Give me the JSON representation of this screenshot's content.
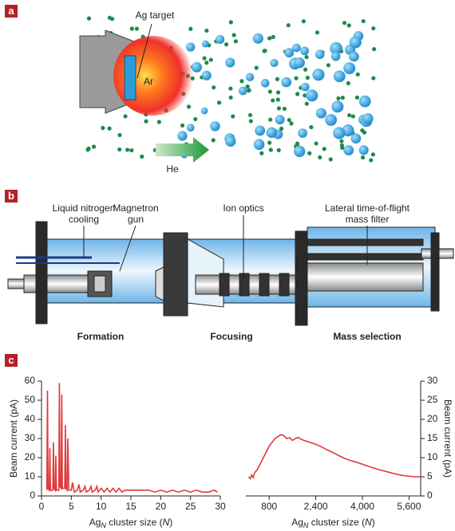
{
  "panels": {
    "a": {
      "label": "a",
      "target_label": "Ag target",
      "gas_label": "Ar",
      "carrier_label": "He"
    },
    "b": {
      "label": "b",
      "callouts": [
        [
          "Liquid nitrogen",
          "cooling"
        ],
        [
          "Magnetron",
          "gun"
        ],
        [
          "Ion optics"
        ],
        [
          "Lateral time-of-flight",
          "mass filter"
        ]
      ],
      "stages": [
        "Formation",
        "Focusing",
        "Mass selection"
      ]
    },
    "c": {
      "label": "c"
    }
  },
  "chart_data": [
    {
      "type": "line",
      "ylabel": "Beam current (pA)",
      "xlabel": [
        "Ag",
        "N",
        " cluster size (",
        "N",
        ")"
      ],
      "x": [
        0.9,
        1.0,
        1.1,
        1.3,
        1.4,
        1.5,
        1.9,
        2.0,
        2.1,
        2.3,
        2.4,
        2.5,
        2.9,
        3.0,
        3.1,
        3.3,
        3.4,
        3.5,
        3.9,
        4.0,
        4.1,
        4.3,
        4.4,
        4.6,
        5.0,
        5.2,
        5.5,
        6.0,
        6.3,
        6.5,
        7.0,
        7.3,
        7.5,
        8.0,
        8.3,
        8.5,
        9.0,
        9.3,
        9.5,
        10,
        10.5,
        11,
        11.5,
        12,
        12.5,
        13,
        13.5,
        14,
        15,
        16,
        17,
        18,
        19,
        20,
        21,
        22,
        23,
        24,
        25,
        26,
        27,
        28,
        29,
        29.5
      ],
      "series": [
        {
          "color": "#e0383a",
          "values": [
            3,
            55,
            4,
            3,
            25,
            3,
            3,
            28,
            4,
            3,
            21,
            3,
            3,
            59,
            5,
            4,
            53,
            4,
            4,
            37,
            4,
            3,
            30,
            3,
            3,
            7,
            2,
            3,
            6,
            2,
            3,
            5,
            2,
            3,
            5,
            2,
            3,
            5,
            2,
            4,
            2,
            4,
            2,
            4,
            2,
            4,
            2,
            3,
            3,
            3,
            3,
            3,
            2,
            3,
            2,
            3,
            2,
            3,
            2,
            3,
            2,
            2,
            3,
            2
          ]
        }
      ],
      "xlim": [
        0,
        30
      ],
      "xticks": [
        0,
        5,
        10,
        15,
        20,
        25,
        30
      ],
      "ylim": [
        0,
        60
      ],
      "yticks": [
        0,
        10,
        20,
        30,
        40,
        50,
        60
      ]
    },
    {
      "type": "line",
      "y2label": "Beam current (pA)",
      "xlabel": [
        "Ag",
        "N",
        " cluster size (",
        "N",
        ")"
      ],
      "x": [
        100,
        150,
        200,
        250,
        300,
        400,
        500,
        600,
        700,
        800,
        900,
        1000,
        1100,
        1200,
        1300,
        1400,
        1500,
        1600,
        1700,
        1800,
        1900,
        2000,
        2200,
        2400,
        2600,
        2800,
        3000,
        3200,
        3400,
        3600,
        3800,
        4000,
        4300,
        4600,
        4900,
        5200,
        5500,
        5800,
        6000
      ],
      "series": [
        {
          "color": "#e0383a",
          "axis": "y2",
          "values": [
            5,
            4.5,
            5.5,
            4.8,
            6,
            7,
            8.5,
            10,
            11.5,
            13,
            14,
            15,
            15.5,
            16,
            15.8,
            15,
            15.2,
            14.5,
            15,
            15.3,
            14.8,
            14.5,
            14,
            13.5,
            12.8,
            12,
            11.3,
            10.5,
            9.8,
            9.2,
            8.8,
            8.3,
            7.5,
            6.8,
            6.2,
            5.6,
            5.2,
            5,
            5
          ]
        }
      ],
      "xlim": [
        0,
        6000
      ],
      "xticks": [
        800,
        {
          "value": 2400,
          "label": "2,400"
        },
        {
          "value": 4000,
          "label": "4,000"
        },
        {
          "value": 5600,
          "label": "5,600"
        }
      ],
      "y2lim": [
        0,
        30
      ],
      "y2ticks": [
        0,
        5,
        10,
        15,
        20,
        25,
        30
      ]
    }
  ]
}
